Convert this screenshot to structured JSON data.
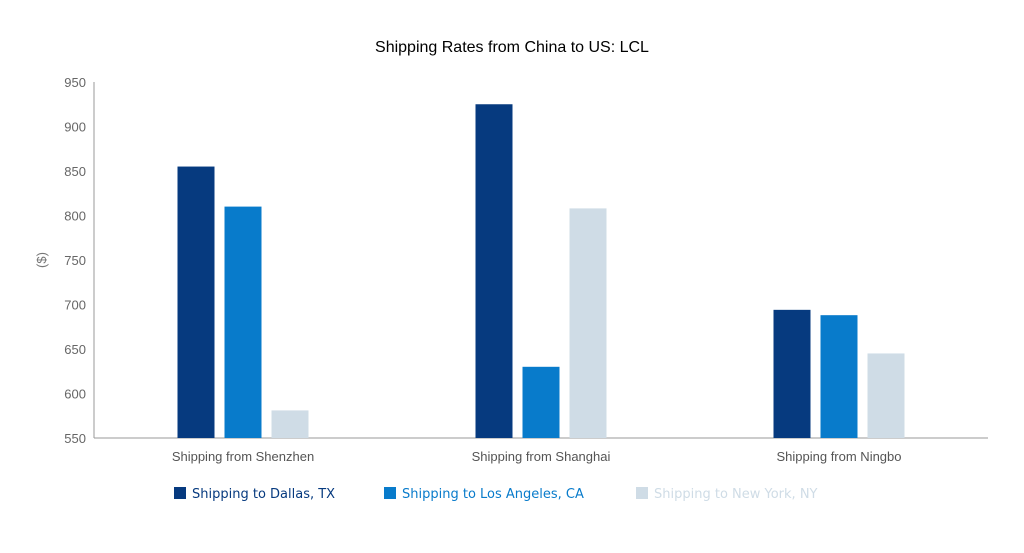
{
  "chart_data": {
    "type": "bar",
    "title": "Shipping Rates from China to US: LCL",
    "xlabel": "",
    "ylabel": "($)",
    "ylim": [
      550,
      950
    ],
    "yticks": [
      550,
      600,
      650,
      700,
      750,
      800,
      850,
      900,
      950
    ],
    "categories": [
      "Shipping from Shenzhen",
      "Shipping from Shanghai",
      "Shipping from Ningbo"
    ],
    "series": [
      {
        "name": "Shipping to Dallas, TX",
        "color": "#063a7f",
        "values": [
          855,
          925,
          694
        ]
      },
      {
        "name": "Shipping to Los Angeles, CA",
        "color": "#087bcb",
        "values": [
          810,
          630,
          688
        ]
      },
      {
        "name": "Shipping to New York, NY",
        "color": "#cfdce6",
        "values": [
          581,
          808,
          645
        ]
      }
    ],
    "grid": false,
    "legend_position": "bottom"
  }
}
